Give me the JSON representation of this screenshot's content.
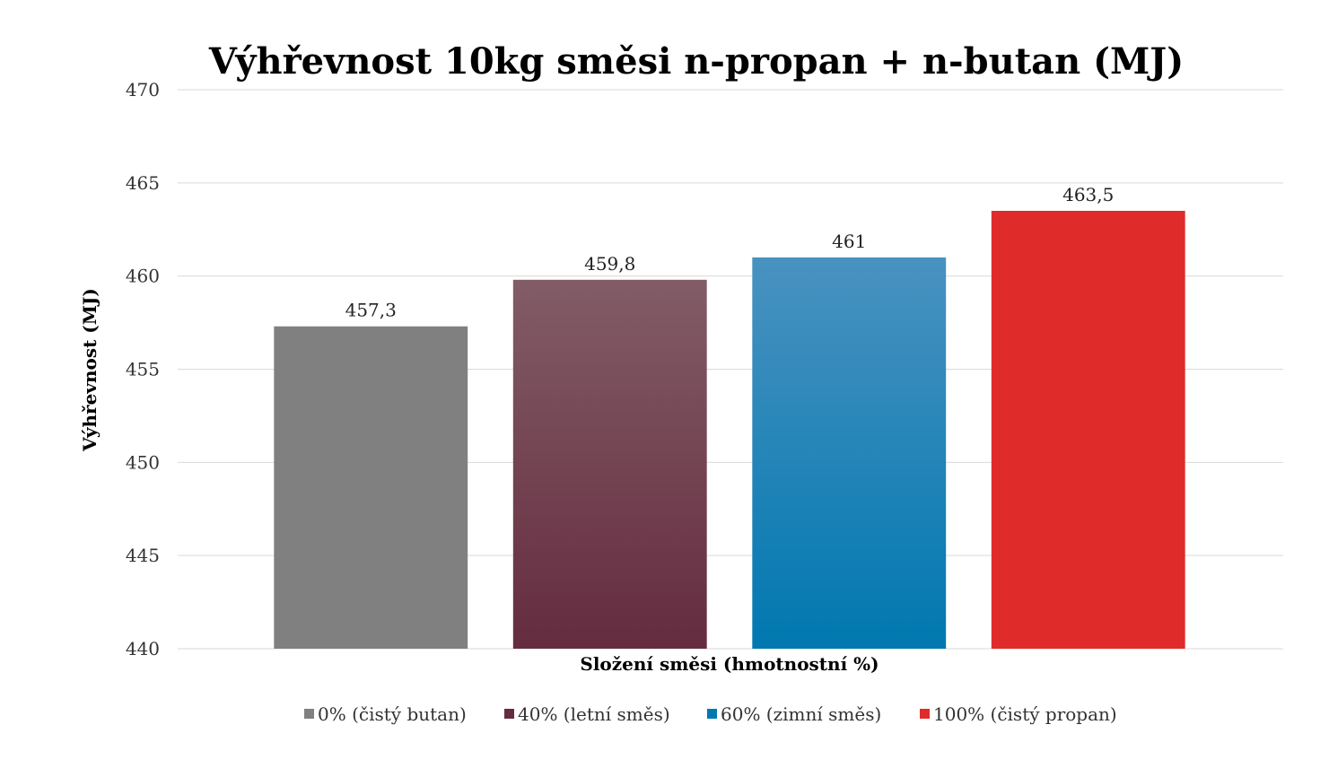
{
  "chart_data": {
    "type": "bar",
    "title": "Výhřevnost 10kg směsi n-propan + n-butan (MJ)",
    "xlabel": "Složení směsi (hmotnostní %)",
    "ylabel": "Výhřevnost (MJ)",
    "ylim": [
      440,
      470
    ],
    "yticks": [
      "440",
      "445",
      "450",
      "455",
      "460",
      "465",
      "470"
    ],
    "grid": true,
    "legend_position": "bottom",
    "series": [
      {
        "name": "0% (čistý butan)",
        "value": 457.3,
        "label": "457,3",
        "color_top": "#808080",
        "color_bottom": "#808080"
      },
      {
        "name": "40% (letní směs)",
        "value": 459.8,
        "label": "459,8",
        "color_top": "#825c67",
        "color_bottom": "#652c3f"
      },
      {
        "name": "60% (zimní směs)",
        "value": 461,
        "label": "461",
        "color_top": "#4992c0",
        "color_bottom": "#0078b0"
      },
      {
        "name": "100% (čistý propan)",
        "value": 463.5,
        "label": "463,5",
        "color_top": "#e02b2b",
        "color_bottom": "#e02b2b"
      }
    ]
  }
}
